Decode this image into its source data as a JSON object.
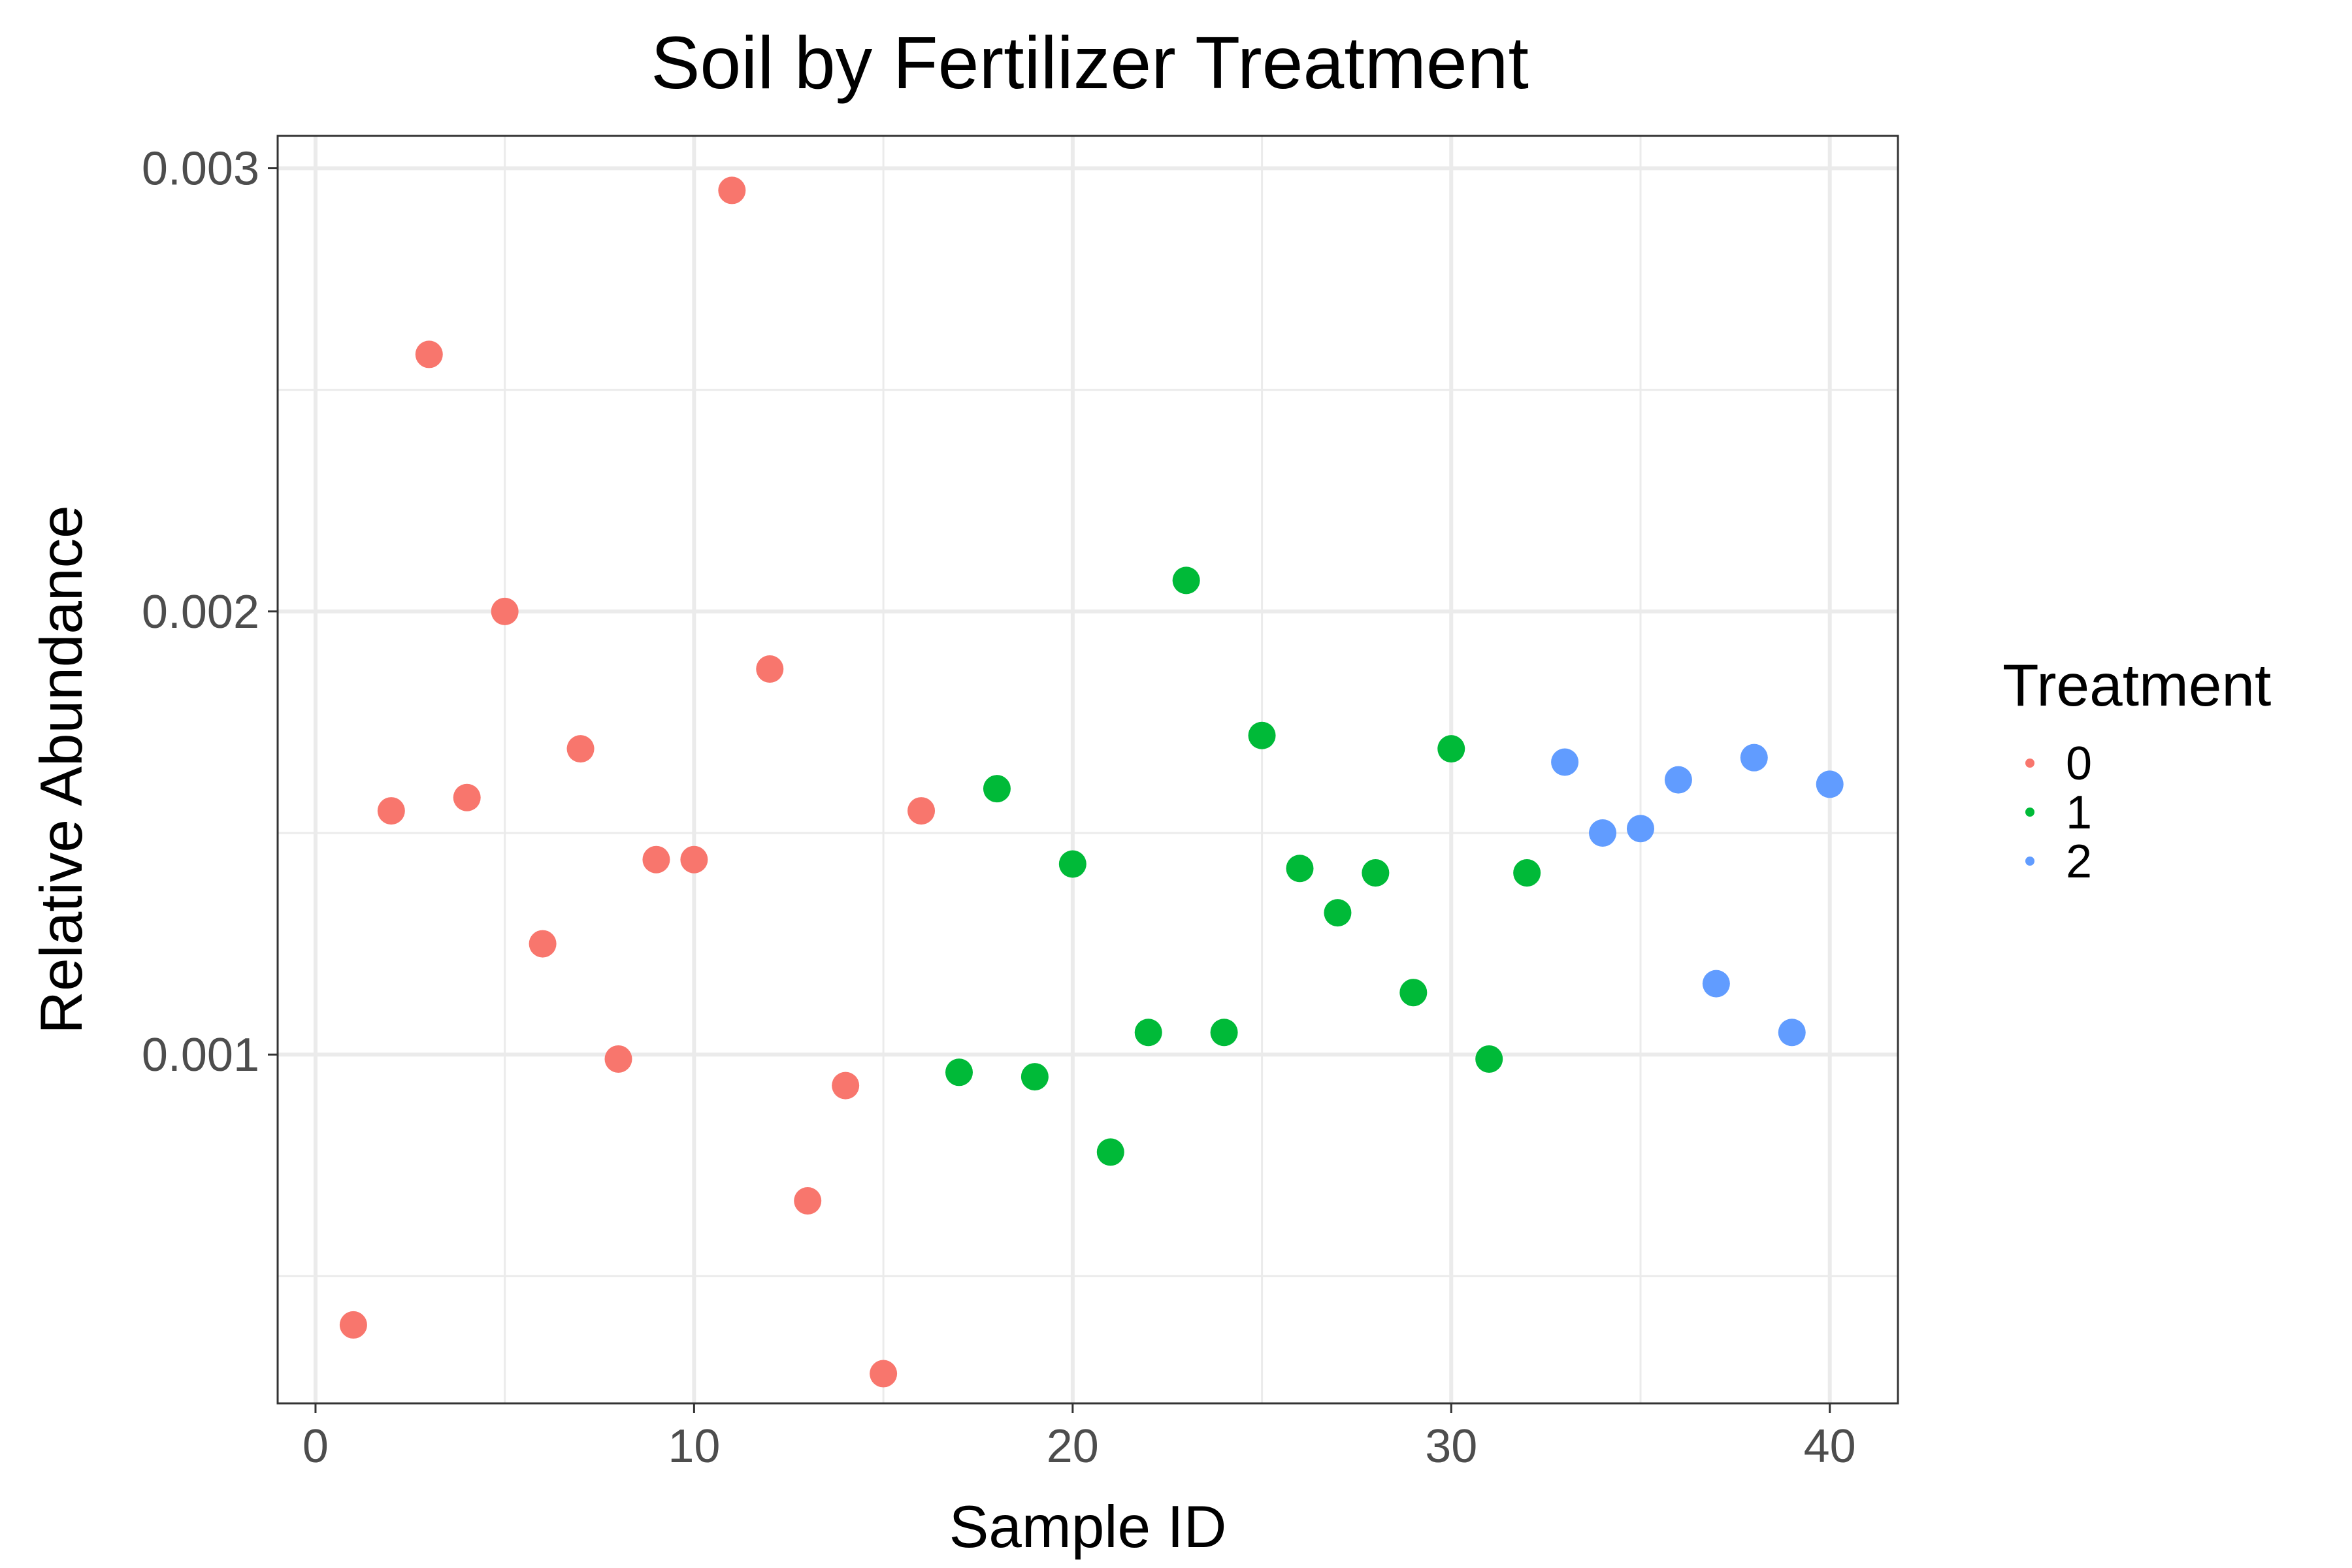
{
  "chart_data": {
    "type": "scatter",
    "title": "Soil by Fertilizer Treatment",
    "xlabel": "Sample ID",
    "ylabel": "Relative Abundance",
    "xlim": [
      -1,
      41.8
    ],
    "ylim": [
      0.000213,
      0.003073
    ],
    "x_ticks": [
      0,
      10,
      20,
      30,
      40
    ],
    "x_tick_labels": [
      "0",
      "10",
      "20",
      "30",
      "40"
    ],
    "x_minor_ticks": [
      5,
      15,
      25,
      35
    ],
    "y_ticks": [
      0.001,
      0.002,
      0.003
    ],
    "y_tick_labels": [
      "0.001",
      "0.002",
      "0.003"
    ],
    "y_minor_ticks": [
      0.0005,
      0.0015,
      0.0025
    ],
    "grid": true,
    "legend": {
      "title": "Treatment",
      "position": "right",
      "entries": [
        {
          "label": "0",
          "color": "#F8766D"
        },
        {
          "label": "1",
          "color": "#00BA38"
        },
        {
          "label": "2",
          "color": "#619CFF"
        }
      ]
    },
    "series": [
      {
        "name": "0",
        "color": "#F8766D",
        "x": [
          1,
          2,
          3,
          4,
          5,
          6,
          7,
          8,
          9,
          10,
          11,
          12,
          13,
          14,
          15,
          16
        ],
        "y": [
          0.00039,
          0.00155,
          0.00258,
          0.00158,
          0.002,
          0.00125,
          0.00169,
          0.00099,
          0.00144,
          0.00144,
          0.00295,
          0.00187,
          0.00067,
          0.00093,
          0.00028,
          0.00155
        ]
      },
      {
        "name": "1",
        "color": "#00BA38",
        "x": [
          17,
          18,
          19,
          20,
          21,
          22,
          23,
          24,
          25,
          26,
          27,
          28,
          29,
          30,
          31,
          32
        ],
        "y": [
          0.00096,
          0.0016,
          0.00095,
          0.00143,
          0.00078,
          0.00105,
          0.00207,
          0.00105,
          0.00172,
          0.00142,
          0.00132,
          0.00141,
          0.00114,
          0.00169,
          0.00099,
          0.00141
        ]
      },
      {
        "name": "2",
        "color": "#619CFF",
        "x": [
          33,
          34,
          35,
          36,
          37,
          38,
          39,
          40
        ],
        "y": [
          0.00166,
          0.0015,
          0.00151,
          0.00162,
          0.00116,
          0.00167,
          0.00105,
          0.00161
        ]
      }
    ]
  }
}
